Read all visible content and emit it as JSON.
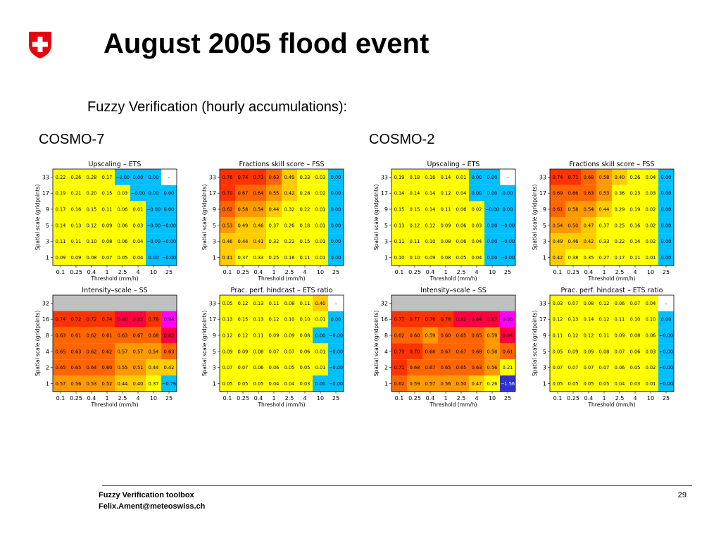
{
  "slide": {
    "title": "August 2005 flood event",
    "subtitle": "Fuzzy Verification (hourly accumulations):",
    "models": [
      "COSMO-7",
      "COSMO-2"
    ],
    "footer_line1": "Fuzzy Verification toolbox",
    "footer_line2": "Felix.Ament@meteoswiss.ch",
    "page_number": "29",
    "logo": "swiss-cross-shield-icon"
  },
  "colors": {
    "logo_red": "#e30613",
    "grey_nan": "#c0c0c0",
    "scale": [
      "#3030d0",
      "#00bfff",
      "#ffff00",
      "#ffcc00",
      "#ff9900",
      "#ff6600",
      "#ff3300",
      "#ff0040",
      "#ff00ff"
    ]
  },
  "chart_data": [
    {
      "type": "heatmap",
      "model": "COSMO-7",
      "title": "Upscaling – ETS",
      "xlabel": "Threshold (mm/h)",
      "ylabel": "Spatial scale (gridpoints)",
      "x_ticks": [
        "0.1",
        "0.25",
        "0.4",
        "1",
        "2.5",
        "4",
        "10",
        "25"
      ],
      "y_ticks": [
        "33",
        "17",
        "9",
        "5",
        "3",
        "1"
      ],
      "values": [
        [
          "0.22",
          "0.26",
          "0.28",
          "0.17",
          "−0.00",
          "0.00",
          "0.00",
          "–"
        ],
        [
          "0.19",
          "0.21",
          "0.20",
          "0.15",
          "0.03",
          "−0.00",
          "0.00",
          "0.00"
        ],
        [
          "0.17",
          "0.16",
          "0.15",
          "0.11",
          "0.06",
          "0.01",
          "−0.00",
          "0.00"
        ],
        [
          "0.14",
          "0.13",
          "0.12",
          "0.09",
          "0.06",
          "0.03",
          "−0.00",
          "−0.00"
        ],
        [
          "0.11",
          "0.11",
          "0.10",
          "0.08",
          "0.06",
          "0.04",
          "−0.00",
          "−0.00"
        ],
        [
          "0.09",
          "0.09",
          "0.08",
          "0.07",
          "0.05",
          "0.04",
          "0.00",
          "−0.00"
        ]
      ]
    },
    {
      "type": "heatmap",
      "model": "COSMO-7",
      "title": "Fractions skill score – FSS",
      "xlabel": "Threshold (mm/h)",
      "ylabel": "Spatial scale (gridpoints)",
      "x_ticks": [
        "0.1",
        "0.25",
        "0.4",
        "1",
        "2.5",
        "4",
        "10",
        "25"
      ],
      "y_ticks": [
        "33",
        "17",
        "9",
        "5",
        "3",
        "1"
      ],
      "values": [
        [
          "0.76",
          "0.74",
          "0.71",
          "0.63",
          "0.49",
          "0.33",
          "0.03",
          "0.00"
        ],
        [
          "0.70",
          "0.67",
          "0.64",
          "0.55",
          "0.42",
          "0.28",
          "0.02",
          "0.00"
        ],
        [
          "0.62",
          "0.58",
          "0.54",
          "0.44",
          "0.32",
          "0.22",
          "0.01",
          "0.00"
        ],
        [
          "0.53",
          "0.49",
          "0.46",
          "0.37",
          "0.26",
          "0.18",
          "0.01",
          "0.00"
        ],
        [
          "0.46",
          "0.44",
          "0.41",
          "0.32",
          "0.22",
          "0.15",
          "0.01",
          "0.00"
        ],
        [
          "0.41",
          "0.37",
          "0.33",
          "0.25",
          "0.16",
          "0.11",
          "0.01",
          "0.00"
        ]
      ]
    },
    {
      "type": "heatmap",
      "model": "COSMO-2",
      "title": "Upscaling – ETS",
      "xlabel": "Threshold (mm/h)",
      "ylabel": "Spatial scale (gridpoints)",
      "x_ticks": [
        "0.1",
        "0.25",
        "0.4",
        "1",
        "2.5",
        "4",
        "10",
        "25"
      ],
      "y_ticks": [
        "33",
        "17",
        "9",
        "5",
        "3",
        "1"
      ],
      "values": [
        [
          "0.19",
          "0.18",
          "0.16",
          "0.14",
          "0.01",
          "0.00",
          "0.00",
          "–"
        ],
        [
          "0.14",
          "0.14",
          "0.14",
          "0.12",
          "0.04",
          "0.00",
          "0.00",
          "0.00"
        ],
        [
          "0.15",
          "0.15",
          "0.14",
          "0.11",
          "0.06",
          "0.02",
          "−0.00",
          "0.00"
        ],
        [
          "0.13",
          "0.12",
          "0.12",
          "0.09",
          "0.06",
          "0.03",
          "0.00",
          "−0.00"
        ],
        [
          "0.11",
          "0.11",
          "0.10",
          "0.08",
          "0.06",
          "0.04",
          "0.00",
          "−0.00"
        ],
        [
          "0.10",
          "0.10",
          "0.09",
          "0.08",
          "0.05",
          "0.04",
          "0.00",
          "−0.00"
        ]
      ]
    },
    {
      "type": "heatmap",
      "model": "COSMO-2",
      "title": "Fractions skill score – FSS",
      "xlabel": "Threshold (mm/h)",
      "ylabel": "Spatial scale (gridpoints)",
      "x_ticks": [
        "0.1",
        "0.25",
        "0.4",
        "1",
        "2.5",
        "4",
        "10",
        "25"
      ],
      "y_ticks": [
        "33",
        "17",
        "9",
        "5",
        "3",
        "1"
      ],
      "values": [
        [
          "0.74",
          "0.71",
          "0.68",
          "0.58",
          "0.40",
          "0.26",
          "0.04",
          "0.00"
        ],
        [
          "0.69",
          "0.66",
          "0.63",
          "0.53",
          "0.36",
          "0.23",
          "0.03",
          "0.00"
        ],
        [
          "0.61",
          "0.58",
          "0.54",
          "0.44",
          "0.29",
          "0.19",
          "0.02",
          "0.00"
        ],
        [
          "0.54",
          "0.50",
          "0.47",
          "0.37",
          "0.25",
          "0.16",
          "0.02",
          "0.00"
        ],
        [
          "0.49",
          "0.46",
          "0.42",
          "0.33",
          "0.22",
          "0.14",
          "0.02",
          "0.00"
        ],
        [
          "0.42",
          "0.38",
          "0.35",
          "0.27",
          "0.17",
          "0.11",
          "0.01",
          "0.00"
        ]
      ]
    },
    {
      "type": "heatmap",
      "model": "COSMO-7",
      "title": "Intensity–scale – SS",
      "xlabel": "Threshold (mm/h)",
      "ylabel": "Spatial scale (gridpoints)",
      "x_ticks": [
        "0.1",
        "0.25",
        "0.4",
        "1",
        "2.5",
        "4",
        "10",
        "25"
      ],
      "y_ticks": [
        "32",
        "16",
        "8",
        "4",
        "2",
        "1"
      ],
      "values": [
        [
          "",
          "",
          "",
          "",
          "",
          "",
          "",
          ""
        ],
        [
          "0.74",
          "0.72",
          "0.72",
          "0.74",
          "0.80",
          "0.85",
          "0.78",
          "0.94"
        ],
        [
          "0.63",
          "0.61",
          "0.62",
          "0.61",
          "0.63",
          "0.67",
          "0.68",
          "0.82"
        ],
        [
          "0.65",
          "0.63",
          "0.62",
          "0.62",
          "0.57",
          "0.57",
          "0.54",
          "0.63"
        ],
        [
          "0.65",
          "0.65",
          "0.64",
          "0.60",
          "0.55",
          "0.51",
          "0.44",
          "0.42"
        ],
        [
          "0.57",
          "0.56",
          "0.53",
          "0.52",
          "0.44",
          "0.40",
          "0.37",
          "−0.76"
        ]
      ]
    },
    {
      "type": "heatmap",
      "model": "COSMO-7",
      "title": "Prac. perf. hindcast – ETS ratio",
      "xlabel": "Threshold (mm/h)",
      "ylabel": "Spatial scale (gridpoints)",
      "x_ticks": [
        "0.1",
        "0.25",
        "0.4",
        "1",
        "2.5",
        "4",
        "10",
        "25"
      ],
      "y_ticks": [
        "33",
        "17",
        "9",
        "5",
        "3",
        "1"
      ],
      "values": [
        [
          "0.05",
          "0.12",
          "0.13",
          "0.11",
          "0.08",
          "0.11",
          "0.40",
          "–"
        ],
        [
          "0.13",
          "0.15",
          "0.13",
          "0.12",
          "0.10",
          "0.10",
          "0.01",
          "0.00"
        ],
        [
          "0.12",
          "0.12",
          "0.11",
          "0.09",
          "0.09",
          "0.08",
          "0.00",
          "−0.00"
        ],
        [
          "0.09",
          "0.09",
          "0.08",
          "0.07",
          "0.07",
          "0.06",
          "0.01",
          "−0.00"
        ],
        [
          "0.07",
          "0.07",
          "0.06",
          "0.06",
          "0.05",
          "0.05",
          "0.01",
          "−0.00"
        ],
        [
          "0.05",
          "0.05",
          "0.05",
          "0.04",
          "0.04",
          "0.03",
          "0.00",
          "−0.00"
        ]
      ]
    },
    {
      "type": "heatmap",
      "model": "COSMO-2",
      "title": "Intensity–scale – SS",
      "xlabel": "Threshold (mm/h)",
      "ylabel": "Spatial scale (gridpoints)",
      "x_ticks": [
        "0.1",
        "0.25",
        "0.4",
        "1",
        "2.5",
        "4",
        "10",
        "25"
      ],
      "y_ticks": [
        "32",
        "16",
        "8",
        "4",
        "2",
        "1"
      ],
      "values": [
        [
          "",
          "",
          "",
          "",
          "",
          "",
          "",
          ""
        ],
        [
          "0.77",
          "0.77",
          "0.76",
          "0.78",
          "0.82",
          "0.84",
          "0.87",
          "0.96"
        ],
        [
          "0.62",
          "0.60",
          "0.59",
          "0.60",
          "0.65",
          "0.65",
          "0.59",
          "0.84"
        ],
        [
          "0.73",
          "0.70",
          "0.68",
          "0.67",
          "0.67",
          "0.68",
          "0.58",
          "0.61"
        ],
        [
          "0.71",
          "0.68",
          "0.67",
          "0.65",
          "0.65",
          "0.63",
          "0.56",
          "0.21"
        ],
        [
          "0.62",
          "0.59",
          "0.57",
          "0.56",
          "0.50",
          "0.47",
          "0.26",
          "−1.56"
        ]
      ]
    },
    {
      "type": "heatmap",
      "model": "COSMO-2",
      "title": "Prac. perf. hindcast – ETS ratio",
      "xlabel": "Threshold (mm/h)",
      "ylabel": "Spatial scale (gridpoints)",
      "x_ticks": [
        "0.1",
        "0.25",
        "0.4",
        "1",
        "2.5",
        "4",
        "10",
        "25"
      ],
      "y_ticks": [
        "33",
        "17",
        "9",
        "5",
        "3",
        "1"
      ],
      "values": [
        [
          "0.03",
          "0.07",
          "0.08",
          "0.12",
          "0.06",
          "0.07",
          "0.04",
          "–"
        ],
        [
          "0.12",
          "0.13",
          "0.14",
          "0.12",
          "0.11",
          "0.10",
          "0.10",
          "0.00"
        ],
        [
          "0.11",
          "0.12",
          "0.12",
          "0.11",
          "0.09",
          "0.08",
          "0.06",
          "−0.00"
        ],
        [
          "0.05",
          "0.09",
          "0.09",
          "0.08",
          "0.07",
          "0.06",
          "0.03",
          "−0.00"
        ],
        [
          "0.07",
          "0.07",
          "0.07",
          "0.07",
          "0.06",
          "0.05",
          "0.02",
          "−0.00"
        ],
        [
          "0.05",
          "0.05",
          "0.05",
          "0.05",
          "0.04",
          "0.03",
          "0.01",
          "−0.00"
        ]
      ]
    }
  ]
}
